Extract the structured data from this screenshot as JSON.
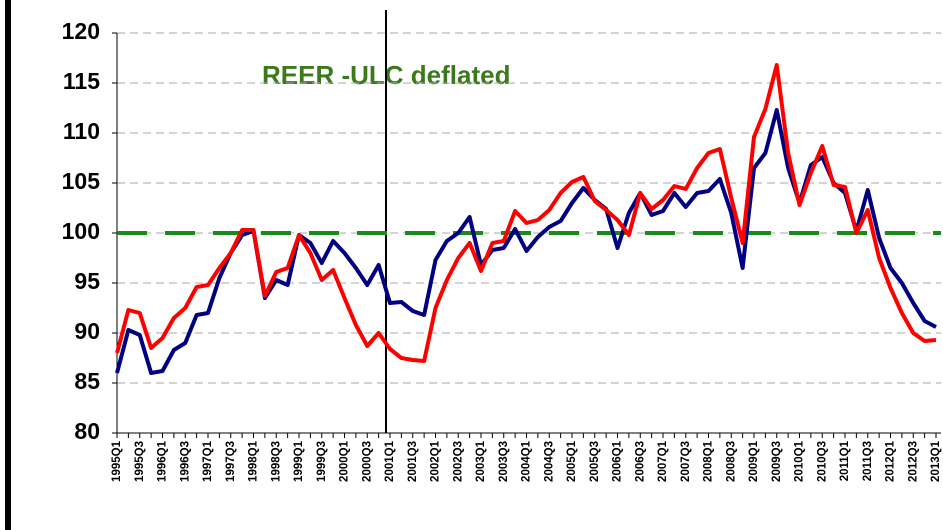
{
  "chart_data": {
    "type": "line",
    "title": "REER -ULC deflated",
    "title_color": "#3a7a1a",
    "categories": [
      "1995Q1",
      null,
      "1995Q3",
      null,
      "1996Q1",
      null,
      "1996Q3",
      null,
      "1997Q1",
      null,
      "1997Q3",
      null,
      "1998Q1",
      null,
      "1998Q3",
      null,
      "1999Q1",
      null,
      "1999Q3",
      null,
      "2000Q1",
      null,
      "2000Q3",
      null,
      "2001Q1",
      null,
      "2001Q3",
      null,
      "2002Q1",
      null,
      "2002Q3",
      null,
      "2003Q1",
      null,
      "2003Q3",
      null,
      "2004Q1",
      null,
      "2004Q3",
      null,
      "2005Q1",
      null,
      "2005Q3",
      null,
      "2006Q1",
      null,
      "2006Q3",
      null,
      "2007Q1",
      null,
      "2007Q3",
      null,
      "2008Q1",
      null,
      "2008Q3",
      null,
      "2009Q1",
      null,
      "2009Q3",
      null,
      "2010Q1",
      null,
      "2010Q3",
      null,
      "2011Q1",
      null,
      "2011Q3",
      null,
      "2012Q1",
      null,
      "2012Q3",
      null,
      "2013Q1"
    ],
    "series": [
      {
        "color": "#000080",
        "values": [
          86,
          90.3,
          89.8,
          86,
          86.2,
          88.3,
          89,
          91.8,
          92,
          95.5,
          98,
          99.8,
          100.2,
          93.5,
          95.3,
          94.8,
          99.8,
          99,
          97,
          99.2,
          98,
          96.5,
          94.8,
          96.8,
          93,
          93.1,
          92.2,
          91.8,
          97.3,
          99.2,
          100,
          101.6,
          96.8,
          98.3,
          98.5,
          100.4,
          98.2,
          99.6,
          100.6,
          101.2,
          103,
          104.5,
          103.3,
          102.4,
          98.5,
          102,
          104,
          101.8,
          102.2,
          104,
          102.6,
          104,
          104.2,
          105.4,
          102,
          96.5,
          106.5,
          108,
          112.3,
          106.5,
          103,
          106.8,
          107.6,
          105,
          104,
          100.2,
          104.3,
          99.5,
          96.5,
          95,
          93,
          91.2,
          90.6
        ]
      },
      {
        "color": "#ff0000",
        "values": [
          88,
          92.3,
          92,
          88.5,
          89.5,
          91.5,
          92.5,
          94.6,
          94.8,
          96.5,
          98,
          100.3,
          100.3,
          93.7,
          96.1,
          96.5,
          99.8,
          98,
          95.3,
          96.3,
          93.5,
          90.8,
          88.7,
          90,
          88.4,
          87.5,
          87.3,
          87.2,
          92.5,
          95.3,
          97.5,
          99,
          96.2,
          99,
          99.2,
          102.2,
          101,
          101.3,
          102.3,
          104,
          105.1,
          105.6,
          103.2,
          102.3,
          101.3,
          99.8,
          104,
          102.4,
          103.3,
          104.7,
          104.4,
          106.5,
          108,
          108.4,
          103.5,
          99,
          109.6,
          112.4,
          116.8,
          108,
          102.8,
          106,
          108.7,
          104.8,
          104.6,
          100,
          102.3,
          97.5,
          94.5,
          92,
          90,
          89.2,
          89.3
        ]
      }
    ],
    "ylim": [
      80,
      120
    ],
    "yticks": [
      80,
      85,
      90,
      95,
      100,
      105,
      110,
      115,
      120
    ],
    "grid": true,
    "reference_line": {
      "value": 100,
      "color": "#1a8a1a"
    },
    "vline_category": "2001Q1"
  }
}
